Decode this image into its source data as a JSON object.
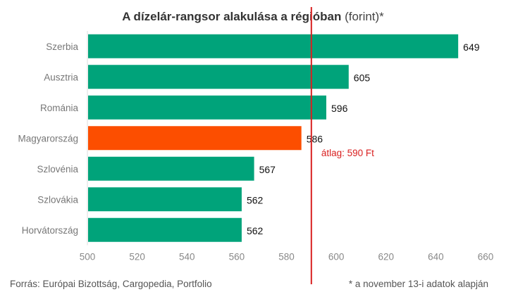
{
  "title": {
    "bold": "A dízelár-rangsor alakulása a régióban",
    "light": " (forint)*"
  },
  "source": "Forrás: Európai Bizottság, Cargopedia, Portfolio",
  "note": "* a november 13-i adatok alapján",
  "colors": {
    "bar": "#00a37a",
    "highlight": "#fc4e00",
    "average_line": "#d92020",
    "axis_text": "#888888",
    "category_text": "#777777",
    "label_text": "#111111"
  },
  "chart_data": {
    "type": "bar",
    "orientation": "horizontal",
    "categories": [
      "Szerbia",
      "Ausztria",
      "Románia",
      "Magyarország",
      "Szlovénia",
      "Szlovákia",
      "Horvátország"
    ],
    "values": [
      649,
      605,
      596,
      586,
      567,
      562,
      562
    ],
    "value_labels": [
      "649",
      "605",
      "596",
      "586",
      "567",
      "562",
      "562"
    ],
    "highlight_category": "Magyarország",
    "xlim": [
      500,
      660
    ],
    "xticks": [
      500,
      520,
      540,
      560,
      580,
      600,
      620,
      640,
      660
    ],
    "average": {
      "value": 590,
      "label": "átlag: 590 Ft"
    },
    "grid": false,
    "legend": "none"
  }
}
